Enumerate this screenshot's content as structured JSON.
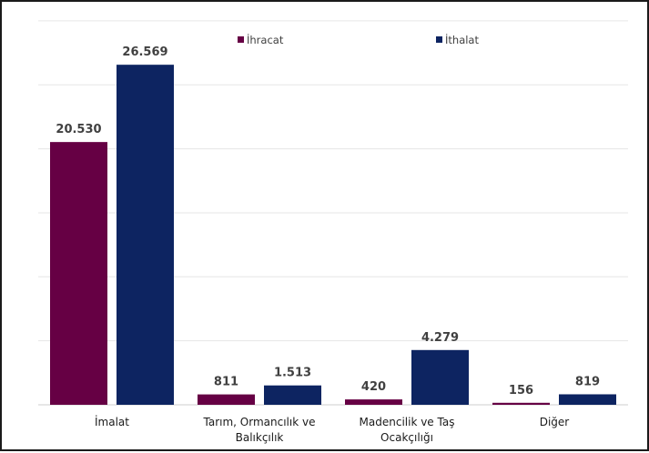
{
  "chart_data": {
    "type": "bar",
    "categories": [
      [
        "İmalat"
      ],
      [
        "Tarım, Ormancılık ve",
        "Balıkçılık"
      ],
      [
        "Madencilik ve Taş",
        "Ocakçılığı"
      ],
      [
        "Diğer"
      ]
    ],
    "series": [
      {
        "name": "İhracat",
        "color": "#660044",
        "values": [
          20530,
          811,
          420,
          156
        ],
        "labels": [
          "20.530",
          "811",
          "420",
          "156"
        ]
      },
      {
        "name": "İthalat",
        "color": "#0d2461",
        "values": [
          26569,
          1513,
          4279,
          819
        ],
        "labels": [
          "26.569",
          "1.513",
          "4.279",
          "819"
        ]
      }
    ],
    "title": "",
    "xlabel": "",
    "ylabel": "",
    "ylim": [
      0,
      30000
    ],
    "grid": true,
    "legend_position": "top"
  }
}
